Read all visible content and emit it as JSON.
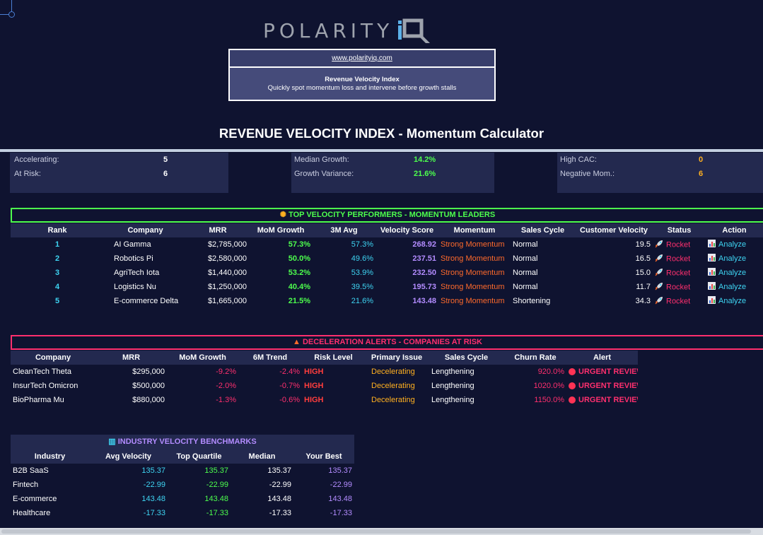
{
  "brand": {
    "logo_text": "POLARITY",
    "url": "www.polarityiq.com",
    "box_title": "Revenue Velocity Index",
    "box_subtitle": "Quickly spot momentum loss and intervene before growth stalls"
  },
  "title": "REVENUE VELOCITY INDEX - Momentum Calculator",
  "kpis": [
    {
      "label": "Accelerating:",
      "value": "5",
      "color": "#ffffff"
    },
    {
      "label": "At Risk:",
      "value": "6",
      "color": "#ffffff"
    },
    {
      "label": "Median Growth:",
      "value": "14.2%",
      "color": "#4dff4d"
    },
    {
      "label": "Growth Variance:",
      "value": "21.6%",
      "color": "#4dff4d"
    },
    {
      "label": "High CAC:",
      "value": "0",
      "color": "#ffb020"
    },
    {
      "label": "Negative Mom.:",
      "value": "6",
      "color": "#ffb020"
    }
  ],
  "top": {
    "title": "TOP VELOCITY PERFORMERS - MOMENTUM LEADERS",
    "headers": [
      "Rank",
      "Company",
      "MRR",
      "MoM Growth",
      "3M Avg",
      "Velocity Score",
      "Momentum",
      "Sales Cycle",
      "Customer Velocity",
      "Status",
      "Action"
    ],
    "rows": [
      [
        "1",
        "AI Gamma",
        "$2,785,000",
        "57.3%",
        "57.3%",
        "268.92",
        "Strong Momentum",
        "Normal",
        "19.5",
        "Rocket",
        "Analyze"
      ],
      [
        "2",
        "Robotics Pi",
        "$2,580,000",
        "50.0%",
        "49.6%",
        "237.51",
        "Strong Momentum",
        "Normal",
        "16.5",
        "Rocket",
        "Analyze"
      ],
      [
        "3",
        "AgriTech Iota",
        "$1,440,000",
        "53.2%",
        "53.9%",
        "232.50",
        "Strong Momentum",
        "Normal",
        "15.0",
        "Rocket",
        "Analyze"
      ],
      [
        "4",
        "Logistics Nu",
        "$1,250,000",
        "40.4%",
        "39.5%",
        "195.73",
        "Strong Momentum",
        "Normal",
        "11.7",
        "Rocket",
        "Analyze"
      ],
      [
        "5",
        "E-commerce Delta",
        "$1,665,000",
        "21.5%",
        "21.6%",
        "143.48",
        "Strong Momentum",
        "Shortening",
        "34.3",
        "Rocket",
        "Analyze"
      ]
    ]
  },
  "alerts": {
    "title": "DECELERATION ALERTS - COMPANIES AT RISK",
    "headers": [
      "Company",
      "MRR",
      "MoM Growth",
      "6M Trend",
      "Risk Level",
      "Primary Issue",
      "Sales Cycle",
      "Churn Rate",
      "Alert"
    ],
    "rows": [
      [
        "CleanTech Theta",
        "$295,000",
        "-9.2%",
        "-2.4%",
        "HIGH",
        "Decelerating",
        "Lengthening",
        "920.0%",
        "URGENT REVIEW"
      ],
      [
        "InsurTech Omicron",
        "$500,000",
        "-2.0%",
        "-0.7%",
        "HIGH",
        "Decelerating",
        "Lengthening",
        "1020.0%",
        "URGENT REVIEW"
      ],
      [
        "BioPharma Mu",
        "$880,000",
        "-1.3%",
        "-0.6%",
        "HIGH",
        "Decelerating",
        "Lengthening",
        "1150.0%",
        "URGENT REVIEW"
      ]
    ]
  },
  "bench": {
    "title": "INDUSTRY VELOCITY BENCHMARKS",
    "headers": [
      "Industry",
      "Avg Velocity",
      "Top Quartile",
      "Median",
      "Your Best"
    ],
    "rows": [
      [
        "B2B SaaS",
        "135.37",
        "135.37",
        "135.37",
        "135.37"
      ],
      [
        "Fintech",
        "-22.99",
        "-22.99",
        "-22.99",
        "-22.99"
      ],
      [
        "E-commerce",
        "143.48",
        "143.48",
        "143.48",
        "143.48"
      ],
      [
        "Healthcare",
        "-17.33",
        "-17.33",
        "-17.33",
        "-17.33"
      ]
    ]
  },
  "icons": [
    "polarity-iq-logo",
    "sparkle-icon",
    "siren-icon",
    "chart-icon",
    "rocket-icon",
    "red-dot-icon"
  ]
}
